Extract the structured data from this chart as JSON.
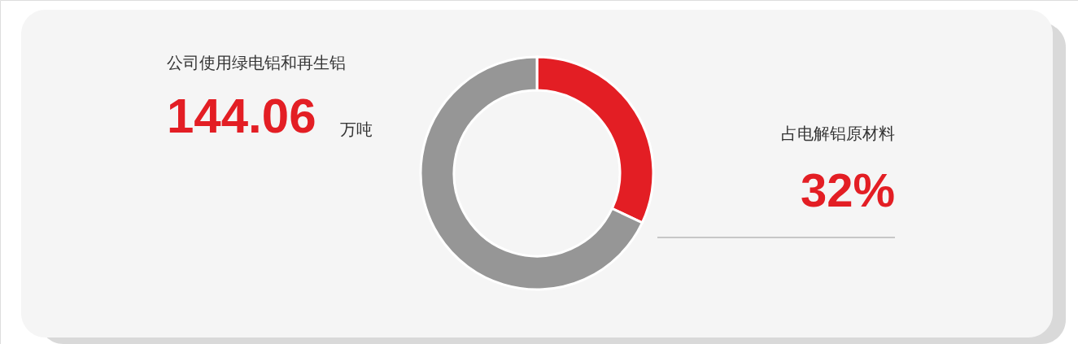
{
  "chart_data": {
    "type": "donut",
    "categories": [
      null,
      null
    ],
    "values": [
      32,
      68
    ],
    "colors": [
      "#e31e24",
      "#969696"
    ],
    "value_labels": [
      "32%",
      null
    ],
    "annotations": [
      "公司使用绿电铝和再生铝",
      "144.06",
      "万吨",
      "占电解铝原材料"
    ],
    "legend": false
  }
}
